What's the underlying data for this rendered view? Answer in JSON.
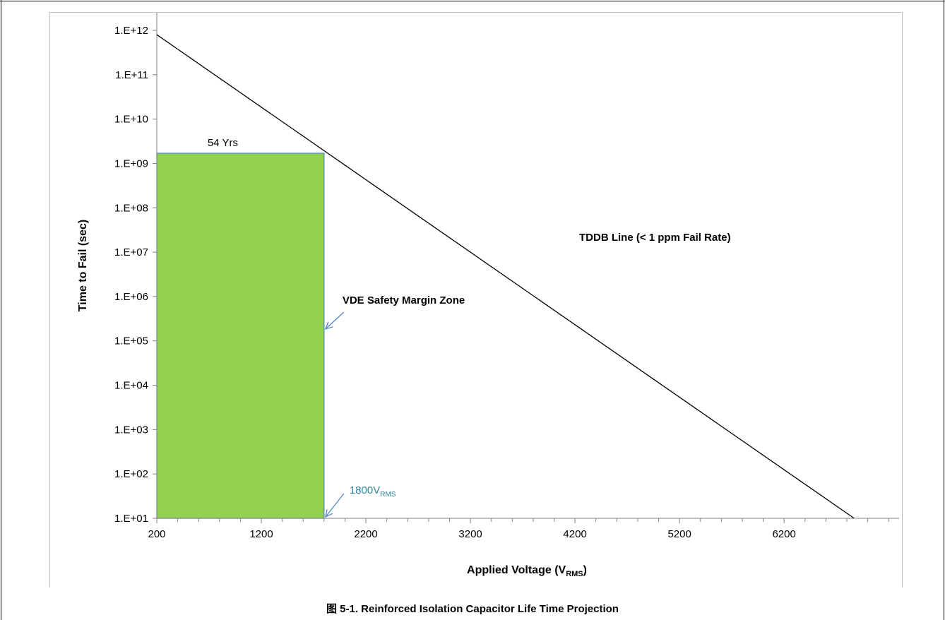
{
  "figure_caption": "图 5-1. Reinforced Isolation Capacitor Life Time Projection",
  "chart_data": {
    "type": "line",
    "xlabel": "Applied Voltage (V",
    "xlabel_sub": "RMS",
    "xlabel_suffix": ")",
    "ylabel": "Time to Fail (sec)",
    "x_range": [
      200,
      7300
    ],
    "x_ticks": [
      200,
      1200,
      2200,
      3200,
      4200,
      5200,
      6200
    ],
    "y_scale": "log",
    "y_range": [
      10,
      1000000000000
    ],
    "y_ticks": [
      {
        "value": 10,
        "label": "1.E+01"
      },
      {
        "value": 100,
        "label": "1.E+02"
      },
      {
        "value": 1000,
        "label": "1.E+03"
      },
      {
        "value": 10000,
        "label": "1.E+04"
      },
      {
        "value": 100000,
        "label": "1.E+05"
      },
      {
        "value": 1000000,
        "label": "1.E+06"
      },
      {
        "value": 10000000,
        "label": "1.E+07"
      },
      {
        "value": 100000000,
        "label": "1.E+08"
      },
      {
        "value": 1000000000,
        "label": "1.E+09"
      },
      {
        "value": 10000000000,
        "label": "1.E+10"
      },
      {
        "value": 100000000000,
        "label": "1.E+11"
      },
      {
        "value": 1000000000000,
        "label": "1.E+12"
      }
    ],
    "grid": false,
    "series": [
      {
        "name": "TDDB Line (< 1 ppm Fail Rate)",
        "color": "#000000",
        "points": [
          {
            "x": 200,
            "y": 800000000000
          },
          {
            "x": 6870,
            "y": 10
          }
        ]
      }
    ],
    "zone": {
      "name": "VDE Safety Margin Zone",
      "x_from": 200,
      "x_to": 1800,
      "y_from": 10,
      "y_to": 1700000000,
      "fill": "#92D050",
      "stroke": "#4F81BD",
      "top_label": "54 Yrs"
    },
    "voltage_annotation": {
      "x": 1800,
      "text": "1800V",
      "sub": "RMS",
      "color": "#31849B"
    },
    "arrow_color": "#4F81BD"
  }
}
